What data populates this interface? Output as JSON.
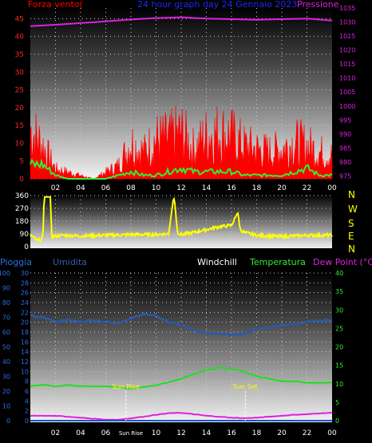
{
  "colors": {
    "wind": "#ff0000",
    "gust": "#33ee33",
    "pressure": "#dd22dd",
    "direction": "#ffff00",
    "humidity": "#2a5aa8",
    "temperature": "#22dd22",
    "dewpoint": "#dd22dd",
    "rain": "#1a55c8",
    "label_white": "#ffffff"
  },
  "chart_data": [
    {
      "type": "area",
      "title": "24 hour graph day  24 Gennaio 2023",
      "left_label": "Forza vento(",
      "right_label": "Pressione",
      "x_ticks": [
        "02",
        "04",
        "06",
        "08",
        "10",
        "12",
        "14",
        "16",
        "18",
        "20",
        "22",
        "00"
      ],
      "y_left": {
        "ticks": [
          "0",
          "5",
          "10",
          "15",
          "20",
          "25",
          "30",
          "35",
          "40",
          "45"
        ],
        "range": [
          0,
          48
        ]
      },
      "y_right": {
        "ticks": [
          "975",
          "980",
          "985",
          "990",
          "995",
          "1000",
          "1005",
          "1010",
          "1015",
          "1020",
          "1025",
          "1030",
          "1035"
        ],
        "range": [
          974,
          1035
        ]
      },
      "series": [
        {
          "name": "Pressione",
          "unit": "hPa",
          "hours": [
            0,
            2,
            4,
            6,
            8,
            10,
            12,
            14,
            16,
            18,
            20,
            22,
            24
          ],
          "values": [
            1028.5,
            1029.0,
            1029.6,
            1030.2,
            1030.9,
            1031.4,
            1031.7,
            1031.2,
            1031.0,
            1030.8,
            1031.0,
            1031.2,
            1030.5
          ]
        },
        {
          "name": "wind",
          "hours": [
            0,
            1,
            2,
            3,
            4,
            5,
            6,
            7,
            8,
            9,
            10,
            11,
            12,
            13,
            14,
            15,
            16,
            17,
            18,
            19,
            20,
            21,
            22,
            23,
            24
          ],
          "values": [
            15,
            10,
            3,
            2,
            1,
            0,
            2,
            4,
            11,
            8,
            12,
            12,
            14,
            9,
            13,
            14,
            13,
            10,
            9,
            8,
            9,
            11,
            10,
            8,
            7
          ]
        },
        {
          "name": "gust",
          "hours": [
            0,
            1,
            2,
            3,
            4,
            5,
            6,
            7,
            8,
            9,
            10,
            11,
            12,
            13,
            14,
            15,
            16,
            17,
            18,
            19,
            20,
            21,
            22,
            23,
            24
          ],
          "values": [
            4,
            4,
            1,
            0,
            0,
            0,
            0,
            1,
            2,
            1,
            1,
            2,
            3,
            2,
            2,
            2,
            2,
            1,
            1,
            1,
            1,
            2,
            3,
            1,
            1
          ]
        }
      ]
    },
    {
      "type": "line",
      "left_ticks": [
        "0",
        "90",
        "180",
        "270",
        "360"
      ],
      "right_ticks": [
        "N",
        "W",
        "S",
        "E",
        "N"
      ],
      "range": [
        0,
        360
      ],
      "series": [
        {
          "name": "direction",
          "hours": [
            0,
            0.6,
            1.0,
            1.1,
            1.6,
            1.7,
            2.5,
            4,
            6,
            8,
            10,
            11,
            11.4,
            11.5,
            11.7,
            12,
            13,
            14,
            15,
            16,
            16.5,
            16.7,
            17,
            18,
            20,
            22,
            24
          ],
          "values": [
            80,
            40,
            60,
            350,
            350,
            70,
            80,
            75,
            80,
            85,
            85,
            90,
            350,
            300,
            100,
            85,
            100,
            120,
            140,
            150,
            240,
            120,
            100,
            80,
            70,
            80,
            80
          ]
        }
      ]
    },
    {
      "type": "line",
      "top_labels": [
        "Pioggia",
        "Umidita",
        "Windchill",
        "Temperatura",
        "Dew Point (°C)"
      ],
      "x_ticks": [
        "02",
        "04",
        "06",
        "Sun Rise",
        "10",
        "12",
        "14",
        "16",
        "18",
        "20",
        "22",
        "00"
      ],
      "y_rain": {
        "ticks": [
          "0",
          "10",
          "20",
          "30",
          "40",
          "50",
          "60",
          "70",
          "80",
          "90",
          "100"
        ],
        "range": [
          0,
          100
        ]
      },
      "y_temp_left": {
        "ticks": [
          "0",
          "2",
          "4",
          "6",
          "8",
          "10",
          "12",
          "14",
          "16",
          "18",
          "20",
          "22",
          "24",
          "26",
          "28",
          "30"
        ],
        "range": [
          0,
          30
        ]
      },
      "y_temp_right": {
        "ticks": [
          "0",
          "5",
          "10",
          "15",
          "20",
          "25",
          "30",
          "35",
          "40"
        ],
        "range": [
          0,
          40
        ]
      },
      "annotations": [
        {
          "text": "Sun Rise",
          "hour": 7.6
        },
        {
          "text": "Sun  Set",
          "hour": 17.1
        }
      ],
      "series": [
        {
          "name": "Umidita",
          "hours": [
            0,
            1,
            2,
            3,
            4,
            5,
            6,
            7,
            8,
            9,
            10,
            11,
            12,
            13,
            14,
            15,
            16,
            17,
            18,
            19,
            20,
            21,
            22,
            23,
            24
          ],
          "values": [
            71,
            70,
            67,
            68,
            67,
            68,
            67,
            66,
            69,
            72,
            71,
            67,
            65,
            61,
            59,
            59,
            58,
            59,
            62,
            63,
            65,
            65,
            67,
            68,
            68
          ]
        },
        {
          "name": "Temperatura",
          "hours": [
            0,
            1,
            2,
            3,
            4,
            5,
            6,
            7,
            8,
            9,
            10,
            11,
            12,
            13,
            14,
            15,
            16,
            17,
            18,
            19,
            20,
            21,
            22,
            23,
            24
          ],
          "values": [
            7.0,
            7.3,
            7.0,
            7.2,
            7.0,
            7.0,
            7.0,
            6.8,
            6.5,
            6.8,
            7.2,
            7.8,
            8.5,
            9.5,
            10.3,
            10.8,
            10.5,
            10.0,
            9.0,
            8.5,
            8.0,
            8.0,
            7.7,
            7.7,
            7.7
          ]
        },
        {
          "name": "Dew Point",
          "hours": [
            0,
            1,
            2,
            3,
            4,
            5,
            6,
            7,
            8,
            9,
            10,
            11,
            12,
            13,
            14,
            15,
            16,
            17,
            18,
            19,
            20,
            21,
            22,
            23,
            24
          ],
          "values": [
            1.0,
            1.0,
            1.0,
            0.8,
            0.6,
            0.4,
            0.2,
            0.2,
            0.5,
            0.8,
            1.2,
            1.5,
            1.6,
            1.3,
            1.0,
            0.8,
            0.6,
            0.5,
            0.6,
            0.8,
            1.0,
            1.2,
            1.3,
            1.5,
            1.6
          ]
        },
        {
          "name": "Pioggia",
          "hours": [
            0,
            24
          ],
          "values": [
            0,
            0
          ]
        }
      ]
    }
  ]
}
